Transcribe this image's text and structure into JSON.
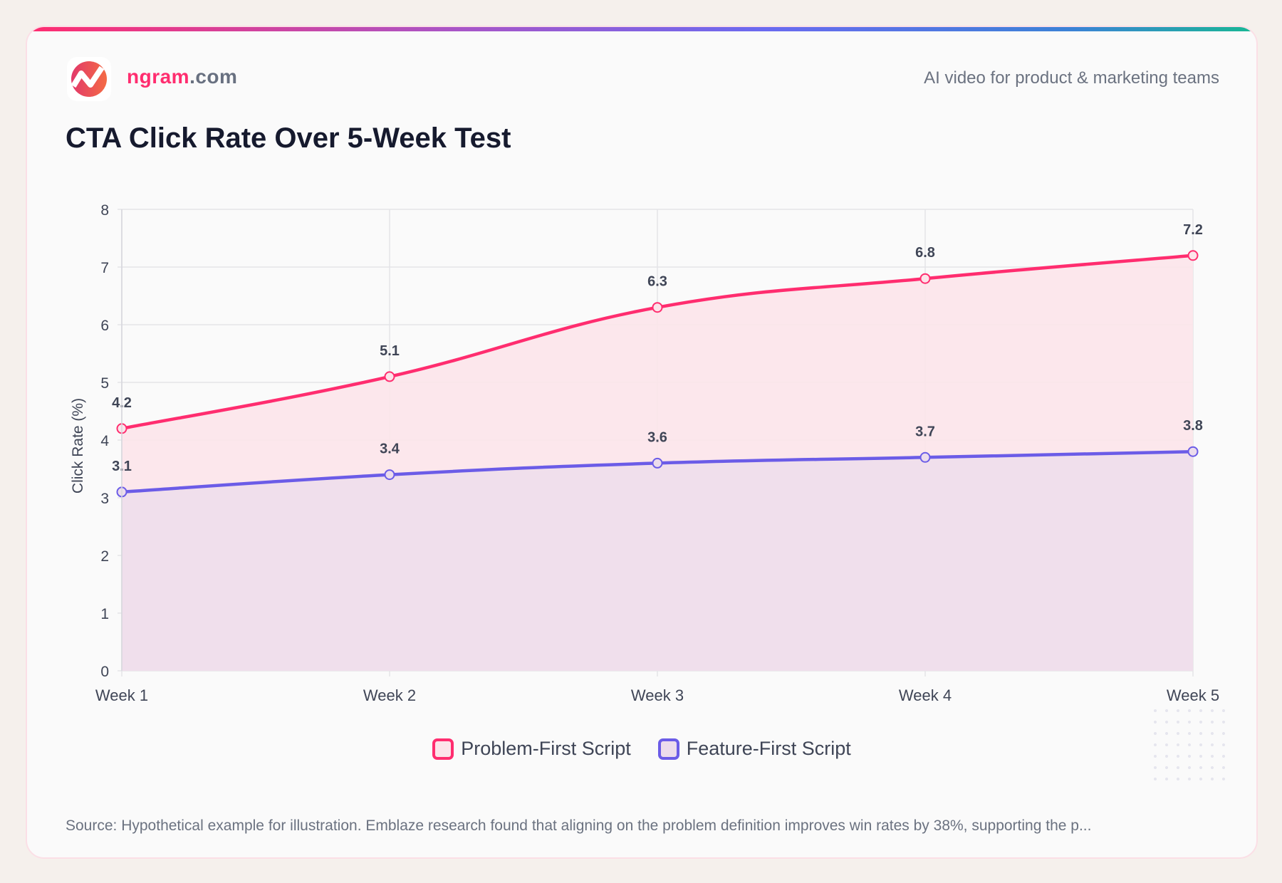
{
  "brand": {
    "name_main": "ngram",
    "name_tld": ".com",
    "tagline": "AI video for product & marketing teams"
  },
  "title": "CTA Click Rate Over 5-Week Test",
  "source": "Source: Hypothetical example for illustration. Emblaze research found that aligning on the problem definition improves win rates by 38%, supporting the p...",
  "chart_data": {
    "type": "area",
    "title": "CTA Click Rate Over 5-Week Test",
    "xlabel": "",
    "ylabel": "Click Rate (%)",
    "categories": [
      "Week 1",
      "Week 2",
      "Week 3",
      "Week 4",
      "Week 5"
    ],
    "ylim": [
      0,
      8
    ],
    "yticks": [
      "0",
      "1",
      "2",
      "3",
      "4",
      "5",
      "6",
      "7",
      "8"
    ],
    "grid": true,
    "legend": "bottom",
    "series": [
      {
        "name": "Problem-First Script",
        "values": [
          4.2,
          5.1,
          6.3,
          6.8,
          7.2
        ],
        "labels": [
          "4.2",
          "5.1",
          "6.3",
          "6.8",
          "7.2"
        ],
        "color": "#ff2d6f",
        "fill": "#fce4ea"
      },
      {
        "name": "Feature-First Script",
        "values": [
          3.1,
          3.4,
          3.6,
          3.7,
          3.8
        ],
        "labels": [
          "3.1",
          "3.4",
          "3.6",
          "3.7",
          "3.8"
        ],
        "color": "#6b5ce7",
        "fill": "#ecdcec"
      }
    ]
  }
}
